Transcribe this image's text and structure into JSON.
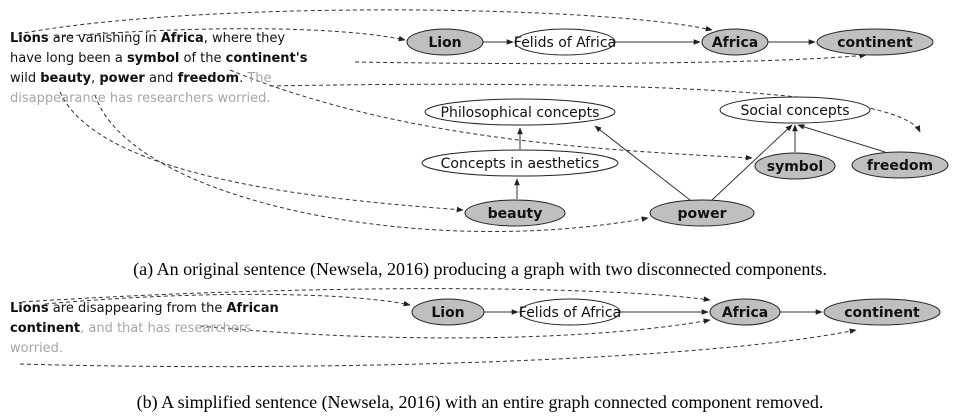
{
  "panel_a": {
    "lines": [
      [
        {
          "text": "Lions",
          "style": "bold"
        },
        {
          "text": " are vanishing in ",
          "style": "normal"
        },
        {
          "text": "Africa",
          "style": "bold"
        },
        {
          "text": ", where they",
          "style": "normal"
        }
      ],
      [
        {
          "text": "have long been a ",
          "style": "normal"
        },
        {
          "text": "symbol",
          "style": "bold"
        },
        {
          "text": " of the ",
          "style": "normal"
        },
        {
          "text": "continent's",
          "style": "bold"
        }
      ],
      [
        {
          "text": "wild ",
          "style": "normal"
        },
        {
          "text": "beauty",
          "style": "bold"
        },
        {
          "text": ", ",
          "style": "normal"
        },
        {
          "text": "power",
          "style": "bold"
        },
        {
          "text": " and ",
          "style": "normal"
        },
        {
          "text": "freedom",
          "style": "bold"
        },
        {
          "text": ". ",
          "style": "normal"
        },
        {
          "text": "The",
          "style": "gray"
        }
      ],
      [
        {
          "text": "disappearance has researchers worried.",
          "style": "gray"
        }
      ]
    ],
    "nodes": [
      {
        "label": "Lion",
        "shaded": true
      },
      {
        "label": "Felids of Africa",
        "shaded": false
      },
      {
        "label": "Africa",
        "shaded": true
      },
      {
        "label": "continent",
        "shaded": true
      },
      {
        "label": "Philosophical concepts",
        "shaded": false
      },
      {
        "label": "Social concepts",
        "shaded": false
      },
      {
        "label": "Concepts in aesthetics",
        "shaded": false
      },
      {
        "label": "symbol",
        "shaded": true
      },
      {
        "label": "freedom",
        "shaded": true
      },
      {
        "label": "beauty",
        "shaded": true
      },
      {
        "label": "power",
        "shaded": true
      }
    ],
    "caption": "(a) An original sentence (Newsela, 2016) producing a graph with two disconnected components."
  },
  "panel_b": {
    "lines": [
      [
        {
          "text": "Lions",
          "style": "bold"
        },
        {
          "text": " are disappearing from the ",
          "style": "normal"
        },
        {
          "text": "African",
          "style": "bold"
        }
      ],
      [
        {
          "text": "continent",
          "style": "bold"
        },
        {
          "text": ", and that has researchers",
          "style": "gray"
        }
      ],
      [
        {
          "text": "worried.",
          "style": "gray"
        }
      ]
    ],
    "nodes": [
      {
        "label": "Lion",
        "shaded": true
      },
      {
        "label": "Felids of Africa",
        "shaded": false
      },
      {
        "label": "Africa",
        "shaded": true
      },
      {
        "label": "continent",
        "shaded": true
      }
    ],
    "caption": "(b) A simplified sentence (Newsela, 2016) with an entire graph connected component removed."
  }
}
